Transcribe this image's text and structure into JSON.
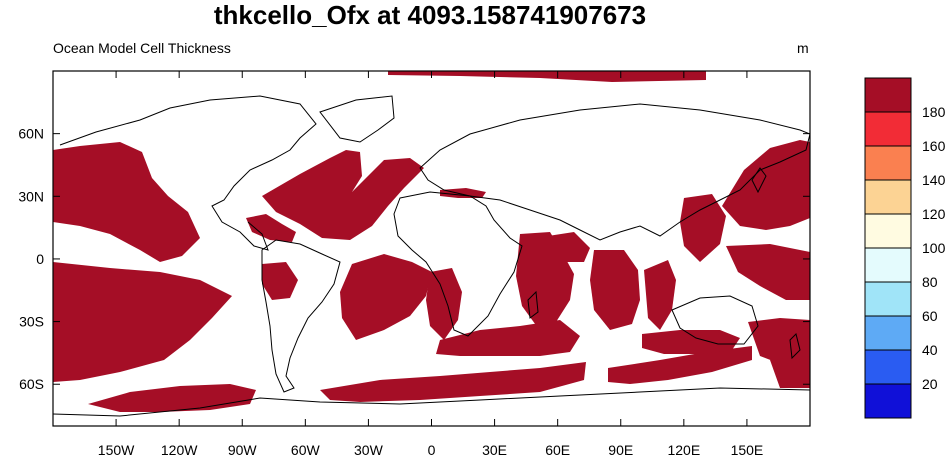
{
  "title": "thkcello_Ofx at 4093.158741907673",
  "subtitle": "Ocean Model Cell Thickness",
  "units": "m",
  "map": {
    "projection": "cylindrical-equidistant",
    "lon_range": [
      -180,
      180
    ],
    "lat_range": [
      -80,
      90
    ],
    "land_color": "#ffffff",
    "ocean_color": "#a50e26",
    "coastline_color": "#000000"
  },
  "axes": {
    "x_ticks": [
      {
        "label": "150W",
        "lon": -150
      },
      {
        "label": "120W",
        "lon": -120
      },
      {
        "label": "90W",
        "lon": -90
      },
      {
        "label": "60W",
        "lon": -60
      },
      {
        "label": "30W",
        "lon": -30
      },
      {
        "label": "0",
        "lon": 0
      },
      {
        "label": "30E",
        "lon": 30
      },
      {
        "label": "60E",
        "lon": 60
      },
      {
        "label": "90E",
        "lon": 90
      },
      {
        "label": "120E",
        "lon": 120
      },
      {
        "label": "150E",
        "lon": 150
      }
    ],
    "y_ticks": [
      {
        "label": "60N",
        "lat": 60
      },
      {
        "label": "30N",
        "lat": 30
      },
      {
        "label": "0",
        "lat": 0
      },
      {
        "label": "30S",
        "lat": -30
      },
      {
        "label": "60S",
        "lat": -60
      }
    ]
  },
  "colorbar": {
    "levels": [
      "20",
      "40",
      "60",
      "80",
      "100",
      "120",
      "140",
      "160",
      "180"
    ],
    "colors": [
      "#1010d8",
      "#2a5cf2",
      "#5eaaf5",
      "#a0e4f8",
      "#e4fbfd",
      "#fffbe1",
      "#fcd394",
      "#fa8050",
      "#f22c36",
      "#a50e26"
    ]
  },
  "chart_data": {
    "type": "heatmap",
    "variable": "thkcello_Ofx",
    "description_time": "4093.158741907673",
    "dominant_value_range": "> 180",
    "units": "m"
  }
}
